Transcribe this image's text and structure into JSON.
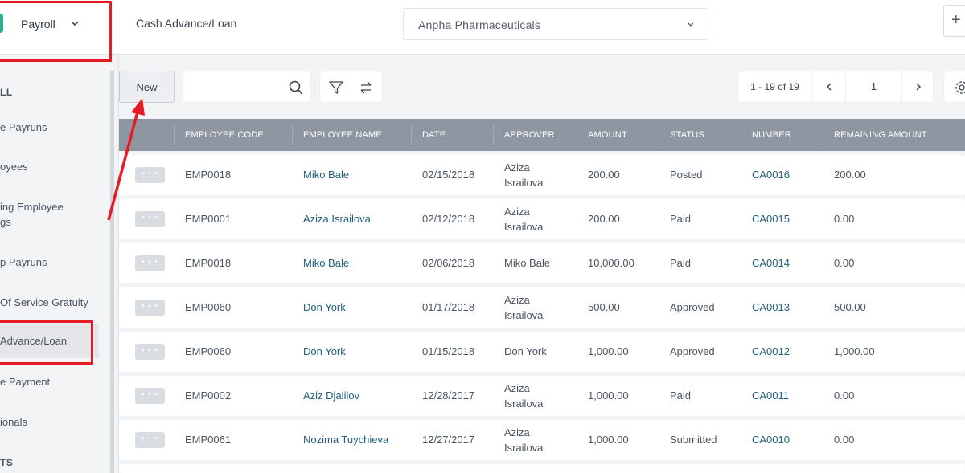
{
  "brand": {
    "label": "Payroll"
  },
  "sidebar": {
    "sections": [
      {
        "label": "LL",
        "top": 108
      },
      {
        "label": "TS",
        "top": 569
      }
    ],
    "items": [
      {
        "label": "e Payruns"
      },
      {
        "label": "oyees"
      },
      {
        "label": "ing Employee\ngs"
      },
      {
        "label": "p Payruns"
      },
      {
        "label": "Of Service Gratuity"
      },
      {
        "label": "Advance/Loan"
      },
      {
        "label": "e Payment"
      },
      {
        "label": "ionals"
      }
    ]
  },
  "header": {
    "breadcrumb": "Cash Advance/Loan",
    "company": "Anpha Pharmaceuticals",
    "plus_label": "+"
  },
  "toolbar": {
    "new_label": "New",
    "search_placeholder": ""
  },
  "pager": {
    "range": "1 - 19 of 19",
    "page": "1"
  },
  "table": {
    "columns": [
      "EMPLOYEE CODE",
      "EMPLOYEE NAME",
      "DATE",
      "APPROVER",
      "AMOUNT",
      "STATUS",
      "NUMBER",
      "REMAINING AMOUNT"
    ],
    "rows": [
      {
        "code": "EMP0018",
        "name": "Miko Bale",
        "date": "02/15/2018",
        "approver": "Aziza Israilova",
        "amount": "200.00",
        "status": "Posted",
        "number": "CA0016",
        "remaining": "200.00"
      },
      {
        "code": "EMP0001",
        "name": "Aziza Israilova",
        "date": "02/12/2018",
        "approver": "Aziza Israilova",
        "amount": "200.00",
        "status": "Paid",
        "number": "CA0015",
        "remaining": "0.00"
      },
      {
        "code": "EMP0018",
        "name": "Miko Bale",
        "date": "02/06/2018",
        "approver": "Miko Bale",
        "amount": "10,000.00",
        "status": "Paid",
        "number": "CA0014",
        "remaining": "0.00"
      },
      {
        "code": "EMP0060",
        "name": "Don York",
        "date": "01/17/2018",
        "approver": "Aziza Israilova",
        "amount": "500.00",
        "status": "Approved",
        "number": "CA0013",
        "remaining": "500.00"
      },
      {
        "code": "EMP0060",
        "name": "Don York",
        "date": "01/15/2018",
        "approver": "Don York",
        "amount": "1,000.00",
        "status": "Approved",
        "number": "CA0012",
        "remaining": "1,000.00"
      },
      {
        "code": "EMP0002",
        "name": "Aziz Djalilov",
        "date": "12/28/2017",
        "approver": "Aziza Israilova",
        "amount": "1,000.00",
        "status": "Paid",
        "number": "CA0011",
        "remaining": "0.00"
      },
      {
        "code": "EMP0061",
        "name": "Nozima Tuychieva",
        "date": "12/27/2017",
        "approver": "Aziza Israilova",
        "amount": "1,000.00",
        "status": "Submitted",
        "number": "CA0010",
        "remaining": "0.00"
      }
    ],
    "row_menu_label": "• • •"
  },
  "colors": {
    "accent": "#2bb08e",
    "header_bg": "#8e96a1",
    "link": "#1f5f80",
    "annotation": "#e81a24"
  },
  "icons": [
    "chevron-down-icon",
    "search-icon",
    "filter-icon",
    "swap-icon",
    "chevron-left-icon",
    "chevron-right-icon",
    "gear-icon"
  ]
}
